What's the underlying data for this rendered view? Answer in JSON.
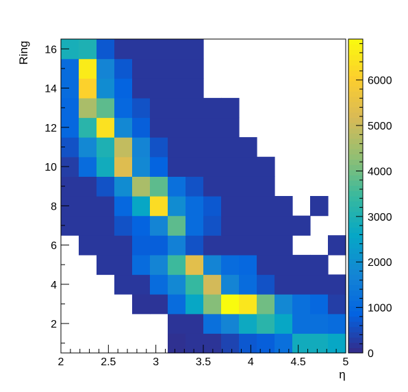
{
  "chart_data": {
    "type": "heatmap",
    "title": "",
    "xlabel": "η",
    "ylabel": "Ring",
    "xlim": [
      2,
      5
    ],
    "ylim": [
      0.5,
      16.5
    ],
    "x_bin_edges": [
      2.0,
      2.1875,
      2.375,
      2.5625,
      2.75,
      2.9375,
      3.125,
      3.3125,
      3.5,
      3.6875,
      3.875,
      4.0625,
      4.25,
      4.4375,
      4.625,
      4.8125,
      5.0
    ],
    "y_bin_centers": [
      1,
      2,
      3,
      4,
      5,
      6,
      7,
      8,
      9,
      10,
      11,
      12,
      13,
      14,
      15,
      16
    ],
    "x_ticks": [
      2,
      2.5,
      3,
      3.5,
      4,
      4.5,
      5
    ],
    "x_tick_labels": [
      "2",
      "2.5",
      "3",
      "3.5",
      "4",
      "4.5",
      "5"
    ],
    "y_ticks": [
      2,
      4,
      6,
      8,
      10,
      12,
      14,
      16
    ],
    "y_tick_labels": [
      "2",
      "4",
      "6",
      "8",
      "10",
      "12",
      "14",
      "16"
    ],
    "z_range": [
      0,
      6900
    ],
    "z_ticks": [
      0,
      1000,
      2000,
      3000,
      4000,
      5000,
      6000
    ],
    "z_tick_labels": [
      "0",
      "1000",
      "2000",
      "3000",
      "4000",
      "5000",
      "6000"
    ],
    "palette": [
      "#352a87",
      "#0363e1",
      "#1485d4",
      "#06a7c6",
      "#38b99e",
      "#92bf73",
      "#d9ba56",
      "#fcce2e",
      "#f9fb0e"
    ],
    "values": [
      [
        null,
        null,
        null,
        null,
        null,
        null,
        100,
        150,
        150,
        400,
        700,
        800,
        1200,
        2800,
        2800,
        2600
      ],
      [
        null,
        null,
        null,
        null,
        null,
        null,
        150,
        150,
        1200,
        1700,
        2700,
        3200,
        2600,
        1200,
        1200,
        1100
      ],
      [
        null,
        null,
        null,
        null,
        150,
        150,
        1100,
        2600,
        4200,
        6900,
        6500,
        4000,
        1800,
        1200,
        1000,
        300
      ],
      [
        null,
        null,
        null,
        200,
        200,
        1100,
        1800,
        3400,
        5100,
        1700,
        1100,
        600,
        200,
        200,
        200,
        200
      ],
      [
        null,
        null,
        200,
        200,
        1100,
        1700,
        3500,
        5400,
        1700,
        1100,
        1000,
        200,
        200,
        200,
        200,
        null
      ],
      [
        null,
        200,
        200,
        200,
        800,
        800,
        1600,
        600,
        200,
        200,
        200,
        200,
        200,
        null,
        null,
        200
      ],
      [
        200,
        200,
        200,
        600,
        900,
        1700,
        3800,
        1100,
        600,
        200,
        200,
        200,
        200,
        200,
        null,
        null
      ],
      [
        200,
        200,
        200,
        1000,
        2600,
        6300,
        1900,
        1100,
        700,
        200,
        200,
        200,
        200,
        null,
        200,
        null
      ],
      [
        200,
        200,
        600,
        1900,
        4600,
        3800,
        1200,
        600,
        200,
        200,
        200,
        200,
        null,
        null,
        null,
        null
      ],
      [
        300,
        1100,
        2800,
        5300,
        1800,
        900,
        200,
        200,
        200,
        200,
        200,
        200,
        null,
        null,
        null,
        null
      ],
      [
        600,
        1800,
        3000,
        4900,
        1700,
        600,
        200,
        200,
        200,
        200,
        200,
        null,
        null,
        null,
        null,
        null
      ],
      [
        1000,
        3200,
        6400,
        1800,
        800,
        200,
        200,
        200,
        200,
        200,
        null,
        null,
        null,
        null,
        null,
        null
      ],
      [
        1000,
        4600,
        3800,
        1000,
        600,
        200,
        200,
        200,
        200,
        200,
        null,
        null,
        null,
        null,
        null,
        null
      ],
      [
        1100,
        6100,
        1900,
        900,
        200,
        200,
        200,
        200,
        null,
        null,
        null,
        null,
        null,
        null,
        null,
        null
      ],
      [
        1100,
        6600,
        1700,
        700,
        200,
        200,
        200,
        200,
        null,
        null,
        null,
        null,
        null,
        null,
        null,
        null
      ],
      [
        2900,
        3000,
        700,
        200,
        200,
        200,
        200,
        200,
        null,
        null,
        null,
        null,
        null,
        null,
        null,
        null
      ]
    ],
    "grid": false,
    "legend": "colorbar-right"
  }
}
